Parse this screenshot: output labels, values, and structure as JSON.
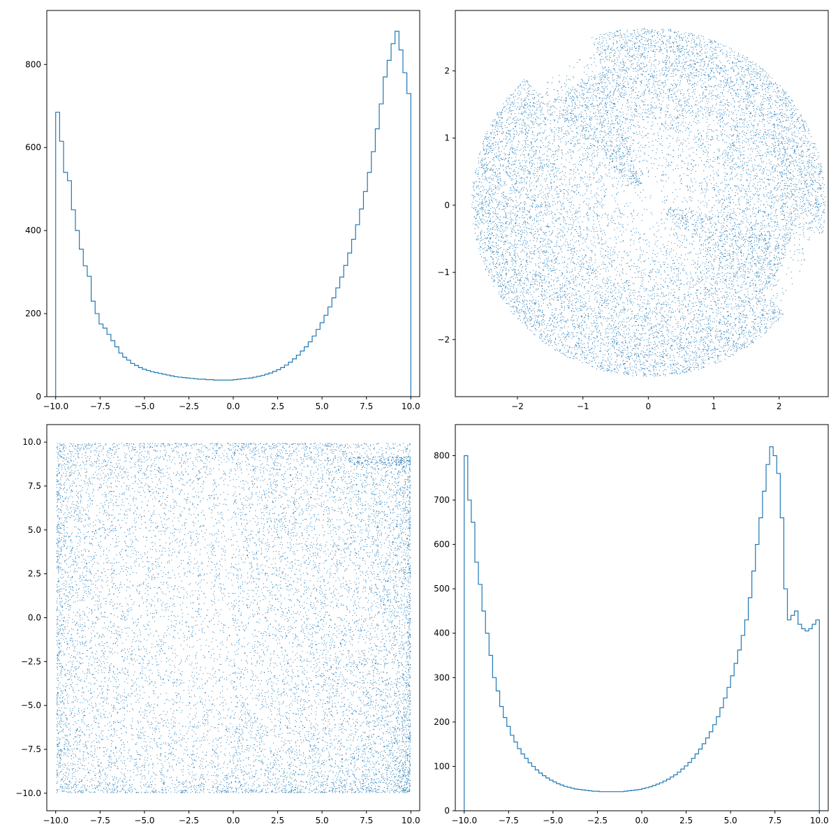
{
  "accent_color": "#1f77b4",
  "chart_data": [
    {
      "type": "histogram",
      "position": "top-left",
      "xlim": [
        -10.5,
        10.5
      ],
      "ylim": [
        0,
        930
      ],
      "xticks": [
        -10.0,
        -7.5,
        -5.0,
        -2.5,
        0.0,
        2.5,
        5.0,
        7.5,
        10.0
      ],
      "xtick_labels": [
        "−10.0",
        "−7.5",
        "−5.0",
        "−2.5",
        "0.0",
        "2.5",
        "5.0",
        "7.5",
        "10.0"
      ],
      "yticks": [
        0,
        200,
        400,
        600,
        800
      ],
      "ytick_labels": [
        "0",
        "200",
        "400",
        "600",
        "800"
      ],
      "bin_range": [
        -10,
        10
      ],
      "counts": [
        685,
        615,
        540,
        520,
        450,
        400,
        355,
        315,
        290,
        230,
        200,
        175,
        165,
        150,
        135,
        120,
        105,
        95,
        88,
        80,
        75,
        70,
        66,
        63,
        60,
        58,
        56,
        54,
        52,
        50,
        48,
        47,
        46,
        45,
        44,
        43,
        42,
        42,
        41,
        41,
        40,
        40,
        40,
        40,
        40,
        41,
        42,
        43,
        44,
        45,
        47,
        49,
        51,
        54,
        57,
        61,
        65,
        70,
        76,
        83,
        91,
        100,
        110,
        120,
        132,
        146,
        162,
        178,
        196,
        216,
        238,
        262,
        288,
        316,
        346,
        379,
        414,
        452,
        494,
        540,
        590,
        645,
        705,
        770,
        810,
        850,
        880,
        835,
        780,
        730
      ],
      "grid": false,
      "legend": false
    },
    {
      "type": "scatter",
      "position": "top-right",
      "xlim": [
        -2.95,
        2.75
      ],
      "ylim": [
        -2.85,
        2.9
      ],
      "xticks": [
        -2,
        -1,
        0,
        1,
        2
      ],
      "xtick_labels": [
        "−2",
        "−1",
        "0",
        "1",
        "2"
      ],
      "yticks": [
        -2,
        -1,
        0,
        1,
        2
      ],
      "ytick_labels": [
        "−2",
        "−1",
        "0",
        "1",
        "2"
      ],
      "point_count": 60000,
      "shape": "irregular disk of radius about 2.7 centered near (0, 0), densest at the rim, notches at upper-left and right",
      "grid": false,
      "legend": false
    },
    {
      "type": "scatter",
      "position": "bottom-left",
      "xlim": [
        -10.5,
        10.5
      ],
      "ylim": [
        -11,
        11
      ],
      "xticks": [
        -10.0,
        -7.5,
        -5.0,
        -2.5,
        0.0,
        2.5,
        5.0,
        7.5,
        10.0
      ],
      "xtick_labels": [
        "−10.0",
        "−7.5",
        "−5.0",
        "−2.5",
        "0.0",
        "2.5",
        "5.0",
        "7.5",
        "10.0"
      ],
      "yticks": [
        -10.0,
        -7.5,
        -5.0,
        -2.5,
        0.0,
        2.5,
        5.0,
        7.5,
        10.0
      ],
      "ytick_labels": [
        "−10.0",
        "−7.5",
        "−5.0",
        "−2.5",
        "0.0",
        "2.5",
        "5.0",
        "7.5",
        "10.0"
      ],
      "point_count": 60000,
      "shape": "square from −10 to 10, densest at the edges and corners",
      "grid": false,
      "legend": false
    },
    {
      "type": "histogram",
      "position": "bottom-right",
      "xlim": [
        -10.5,
        10.5
      ],
      "ylim": [
        0,
        870
      ],
      "xticks": [
        -10.0,
        -7.5,
        -5.0,
        -2.5,
        0.0,
        2.5,
        5.0,
        7.5,
        10.0
      ],
      "xtick_labels": [
        "−10.0",
        "−7.5",
        "−5.0",
        "−2.5",
        "0.0",
        "2.5",
        "5.0",
        "7.5",
        "10.0"
      ],
      "yticks": [
        0,
        100,
        200,
        300,
        400,
        500,
        600,
        700,
        800
      ],
      "ytick_labels": [
        "0",
        "100",
        "200",
        "300",
        "400",
        "500",
        "600",
        "700",
        "800"
      ],
      "bin_range": [
        -10,
        10
      ],
      "counts": [
        800,
        700,
        650,
        560,
        510,
        450,
        400,
        350,
        300,
        270,
        235,
        210,
        190,
        170,
        155,
        140,
        128,
        118,
        108,
        100,
        92,
        85,
        79,
        74,
        69,
        65,
        61,
        58,
        55,
        53,
        51,
        49,
        48,
        47,
        46,
        45,
        44,
        44,
        43,
        43,
        43,
        43,
        43,
        43,
        43,
        44,
        45,
        46,
        47,
        48,
        50,
        52,
        54,
        57,
        60,
        63,
        67,
        71,
        76,
        81,
        87,
        94,
        101,
        109,
        118,
        128,
        139,
        151,
        164,
        178,
        194,
        212,
        232,
        254,
        278,
        304,
        332,
        362,
        395,
        430,
        480,
        540,
        600,
        660,
        720,
        780,
        820,
        800,
        760,
        660,
        500,
        430,
        440,
        450,
        420,
        410,
        405,
        410,
        420,
        430
      ],
      "grid": false,
      "legend": false
    }
  ]
}
